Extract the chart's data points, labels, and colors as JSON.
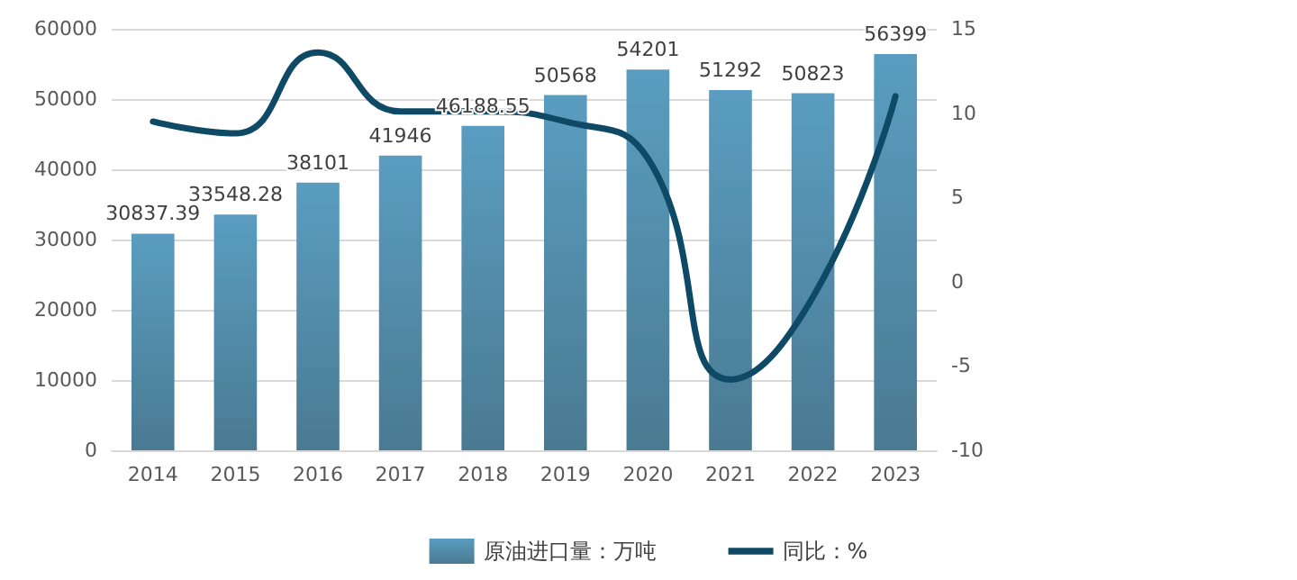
{
  "chart_data": {
    "type": "bar",
    "categories": [
      "2014",
      "2015",
      "2016",
      "2017",
      "2018",
      "2019",
      "2020",
      "2021",
      "2022",
      "2023"
    ],
    "series": [
      {
        "name": "原油进口量：万吨",
        "color": "#5a9dc0",
        "values": [
          30837.39,
          33548.28,
          38101,
          41946,
          46188.55,
          50568,
          54201,
          51292,
          50823,
          56399
        ],
        "value_labels": [
          "30837.39",
          "33548.28",
          "38101",
          "41946",
          "46188.55",
          "50568",
          "54201",
          "51292",
          "50823",
          "56399"
        ]
      },
      {
        "name": "同比：%",
        "type": "line",
        "axis": "y2",
        "color": "#0e4a66",
        "values": [
          9.5,
          8.8,
          13.6,
          10.1,
          10.1,
          9.5,
          7.3,
          -5.8,
          -0.9,
          11.0
        ]
      }
    ],
    "ylim": [
      0,
      60000
    ],
    "yticks": [
      0,
      10000,
      20000,
      30000,
      40000,
      50000,
      60000
    ],
    "y2lim": [
      -10,
      15
    ],
    "y2ticks": [
      -10,
      -5,
      0,
      5,
      10,
      15
    ],
    "grid": "y",
    "legend": "bottom",
    "marker": "none",
    "line_style": "solid"
  }
}
